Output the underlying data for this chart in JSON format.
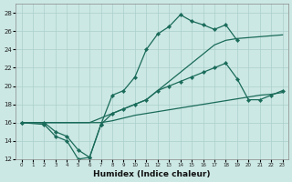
{
  "xlabel": "Humidex (Indice chaleur)",
  "bg_color": "#cce8e4",
  "grid_color": "#aacfcb",
  "line_color": "#1a6b5a",
  "xlim": [
    -0.5,
    23.5
  ],
  "ylim": [
    12,
    29
  ],
  "xticks": [
    0,
    1,
    2,
    3,
    4,
    5,
    6,
    7,
    8,
    9,
    10,
    11,
    12,
    13,
    14,
    15,
    16,
    17,
    18,
    19,
    20,
    21,
    22,
    23
  ],
  "yticks": [
    12,
    14,
    16,
    18,
    20,
    22,
    24,
    26,
    28
  ],
  "line1_x": [
    0,
    2,
    3,
    4,
    5,
    6,
    7,
    8,
    9,
    10,
    11,
    12,
    13,
    14,
    15,
    16,
    17,
    18,
    19
  ],
  "line1_y": [
    16,
    16,
    15,
    14.5,
    13,
    12.2,
    15.8,
    19,
    19.5,
    21,
    24,
    25.7,
    26.5,
    27.8,
    27.1,
    26.7,
    26.2,
    26.7,
    25.0
  ],
  "line2_x": [
    0,
    2,
    3,
    5,
    6,
    7,
    8,
    9,
    10,
    11,
    12,
    13,
    14,
    15,
    16,
    17,
    18,
    19,
    20,
    21,
    22,
    23
  ],
  "line2_y": [
    16,
    16,
    16,
    16,
    16,
    16.5,
    17,
    17.5,
    18.0,
    18.5,
    19.5,
    20.5,
    21.5,
    22.5,
    23.5,
    24.5,
    25.0,
    25.2,
    25.3,
    25.4,
    25.5,
    25.6
  ],
  "line3_x": [
    0,
    2,
    3,
    4,
    5,
    6,
    7,
    8,
    9,
    10,
    11,
    12,
    13,
    14,
    15,
    16,
    17,
    18,
    19,
    20,
    21,
    22,
    23
  ],
  "line3_y": [
    16,
    15.8,
    14.5,
    14,
    12.0,
    12.2,
    15.8,
    17,
    17.5,
    18.0,
    18.5,
    19.5,
    20.0,
    20.5,
    21.0,
    21.5,
    22.0,
    22.5,
    20.8,
    18.5,
    18.5,
    19.0,
    19.5
  ],
  "line4_x": [
    0,
    2,
    3,
    5,
    6,
    7,
    8,
    9,
    10,
    11,
    12,
    13,
    14,
    15,
    16,
    17,
    18,
    19,
    20,
    21,
    22,
    23
  ],
  "line4_y": [
    16,
    16,
    16,
    16,
    16,
    16,
    16.2,
    16.5,
    16.8,
    17.0,
    17.2,
    17.4,
    17.6,
    17.8,
    18.0,
    18.2,
    18.4,
    18.6,
    18.8,
    19.0,
    19.1,
    19.3
  ]
}
